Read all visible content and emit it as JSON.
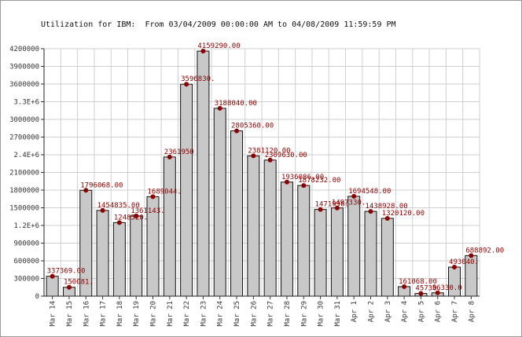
{
  "chart_data": {
    "type": "bar",
    "title": "Utilization for IBM:  From 03/04/2009 00:00:00 AM to 04/08/2009 11:59:59 PM",
    "xlabel": "",
    "ylabel": "",
    "ylim": [
      0,
      4200000
    ],
    "grid": true,
    "legend": "none",
    "colors": {
      "bar": "#c8c8c8",
      "bar_stroke": "#111111",
      "marker": "#8b0000",
      "label": "#8b0000",
      "grid": "#cfcfcf"
    },
    "y_ticks": [
      {
        "value": 0,
        "label": "0"
      },
      {
        "value": 300000,
        "label": "300000"
      },
      {
        "value": 600000,
        "label": "600000"
      },
      {
        "value": 900000,
        "label": "900000"
      },
      {
        "value": 1200000,
        "label": "1.2E+6"
      },
      {
        "value": 1500000,
        "label": "1500000"
      },
      {
        "value": 1800000,
        "label": "1800000"
      },
      {
        "value": 2100000,
        "label": "2100000"
      },
      {
        "value": 2400000,
        "label": "2.4E+6"
      },
      {
        "value": 2700000,
        "label": "2700000"
      },
      {
        "value": 3000000,
        "label": "3000000"
      },
      {
        "value": 3300000,
        "label": "3.3E+6"
      },
      {
        "value": 3600000,
        "label": "3600000"
      },
      {
        "value": 3900000,
        "label": "3900000"
      },
      {
        "value": 4200000,
        "label": "4200000"
      }
    ],
    "categories": [
      "Mar 14",
      "Mar 15",
      "Mar 16",
      "Mar 17",
      "Mar 18",
      "Mar 19",
      "Mar 20",
      "Mar 21",
      "Mar 22",
      "Mar 23",
      "Mar 24",
      "Mar 25",
      "Mar 26",
      "Mar 27",
      "Mar 28",
      "Mar 29",
      "Mar 30",
      "Mar 31",
      "Apr 1",
      "Apr 2",
      "Apr 3",
      "Apr 4",
      "Apr 5",
      "Apr 6",
      "Apr 7",
      "Apr 8"
    ],
    "values": [
      337369,
      150081,
      1796068,
      1454835,
      1248520,
      1361143,
      1689044,
      2361950,
      3596830,
      4159290,
      3188040,
      2805360,
      2381120,
      2309630,
      1936086,
      1878232,
      1471996,
      1497330,
      1694548,
      1438928,
      1320120,
      161068,
      45730,
      56330,
      493040,
      688892
    ],
    "data_labels": [
      "337369.00",
      "150081.",
      "1796068.00",
      "1454835.00",
      "1248520.",
      "1361143.",
      "1689044.",
      "2361950",
      "3596830.",
      "4159290.00",
      "3188040.00",
      "2805360.00",
      "2381120.00",
      "2309630.00",
      "1936086.00",
      "1878232.00",
      "1471996.",
      "1497330.",
      "1694548.00",
      "1438928.00",
      "1320120.00",
      "161068.00",
      "45730.",
      "56330.0",
      "493040.",
      "688892.00"
    ]
  }
}
